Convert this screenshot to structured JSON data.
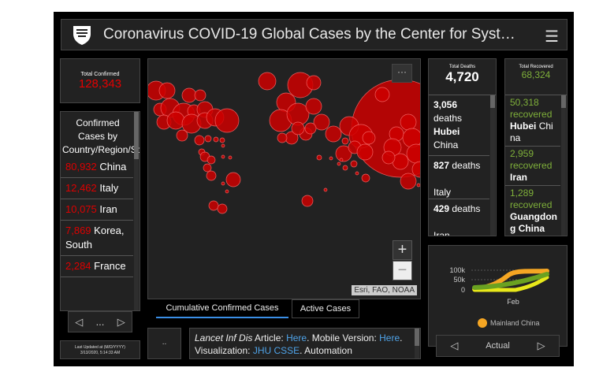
{
  "header": {
    "title": "Coronavirus COVID-19 Global Cases by the Center for Syst…",
    "logo": "jhu-shield-logo",
    "menu_icon": "hamburger-icon"
  },
  "total_confirmed": {
    "label": "Total Confirmed",
    "value": "128,343"
  },
  "country_list": {
    "title": "Confirmed Cases by Country/Region/Sovereignty",
    "items": [
      {
        "count": "80,932",
        "name": "China"
      },
      {
        "count": "12,462",
        "name": "Italy"
      },
      {
        "count": "10,075",
        "name": "Iran"
      },
      {
        "count": "7,869",
        "name": "Korea, South"
      },
      {
        "count": "2,284",
        "name": "France"
      }
    ],
    "nav_prev": "◁",
    "nav_label": "...",
    "nav_next": "▷"
  },
  "last_updated": {
    "label": "Last Updated at (M/D/YYYY)",
    "value": "3/13/2020, 5:14:33 AM"
  },
  "map": {
    "more_label": "···",
    "zoom_in": "+",
    "zoom_out": "−",
    "attribution": "Esri, FAO, NOAA",
    "bubble_color": "#cc0000"
  },
  "tabs": [
    {
      "label": "Cumulative Confirmed Cases",
      "active": true
    },
    {
      "label": "Active Cases",
      "active": false
    }
  ],
  "bottom": {
    "dots_label": "..",
    "info": {
      "t1": "Lancet Inf Dis",
      "t2": " Article: ",
      "l1": "Here",
      "t3": ". Mobile Version: ",
      "l2": "Here",
      "t4": ". Visualization: ",
      "l3": "JHU CSSE",
      "t5": ". Automation"
    }
  },
  "deaths": {
    "label": "Total Deaths",
    "value": "4,720",
    "items": [
      {
        "count": "3,056",
        "unit": "deaths",
        "place": "Hubei",
        "country": "China"
      },
      {
        "count": "827",
        "unit": "deaths",
        "place": "",
        "country": "Italy"
      },
      {
        "count": "429",
        "unit": "deaths",
        "place": "",
        "country": "Iran"
      }
    ]
  },
  "recovered": {
    "label": "Total Recovered",
    "value": "68,324",
    "items": [
      {
        "count": "50,318",
        "unit": "recovered",
        "place": "Hubei",
        "country": "China"
      },
      {
        "count": "2,959",
        "unit": "recovered",
        "place": "Iran",
        "country": ""
      },
      {
        "count": "1,289",
        "unit": "recovered",
        "place": "Guangdong",
        "country": "China"
      }
    ]
  },
  "chart": {
    "y_ticks": [
      "100k",
      "50k",
      "0"
    ],
    "x_label": "Feb",
    "legend": "Mainland China",
    "legend_color": "#f5a623",
    "nav_prev": "◁",
    "nav_label": "Actual",
    "nav_next": "▷",
    "series_colors": [
      "#f5a623",
      "#6aa121",
      "#e8e81a"
    ]
  }
}
